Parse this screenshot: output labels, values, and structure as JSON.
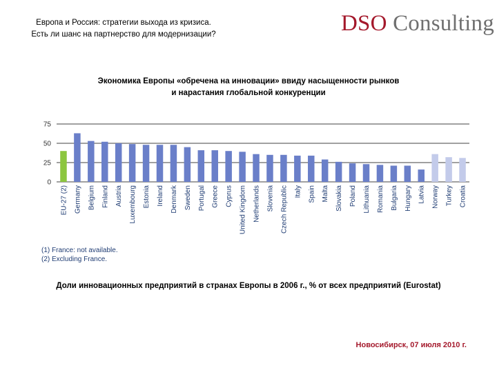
{
  "header": {
    "line1": "Европа и Россия: стратегии выхода из кризиса.",
    "line2": "Есть ли шанс на партнерство для модернизации?"
  },
  "logo": {
    "part1": "DSO",
    "part2": "Consulting"
  },
  "subtitle": {
    "line1": "Экономика Европы «обречена на инновации» ввиду насыщенности рынков",
    "line2": "и нарастания глобальной конкуренции"
  },
  "chart_data": {
    "type": "bar",
    "title": "",
    "xlabel": "",
    "ylabel": "",
    "ylim": [
      0,
      75
    ],
    "yticks": [
      0,
      25,
      50,
      75
    ],
    "grid": true,
    "categories": [
      "EU-27 (2)",
      "Germany",
      "Belgium",
      "Finland",
      "Austria",
      "Luxembourg",
      "Estonia",
      "Ireland",
      "Denmark",
      "Sweden",
      "Portugal",
      "Greece",
      "Cyprus",
      "United Kingdom",
      "Netherlands",
      "Slovenia",
      "Czech Republic",
      "Italy",
      "Spain",
      "Malta",
      "Slovakia",
      "Poland",
      "Lithuania",
      "Romania",
      "Bulgaria",
      "Hungary",
      "Latvia",
      "Norway",
      "Turkey",
      "Croatia"
    ],
    "values": [
      40,
      63,
      53,
      52,
      50,
      49,
      48,
      48,
      48,
      45,
      41,
      41,
      40,
      39,
      36,
      35,
      35,
      34,
      34,
      29,
      26,
      24,
      23,
      22,
      21,
      21,
      16,
      36,
      32,
      31
    ],
    "groups": [
      "eu",
      "member",
      "member",
      "member",
      "member",
      "member",
      "member",
      "member",
      "member",
      "member",
      "member",
      "member",
      "member",
      "member",
      "member",
      "member",
      "member",
      "member",
      "member",
      "member",
      "member",
      "member",
      "member",
      "member",
      "member",
      "member",
      "member",
      "nonmember",
      "nonmember",
      "nonmember"
    ],
    "colors": {
      "eu": "#8cc63f",
      "member": "#6a7fc9",
      "nonmember": "#c3cbea"
    },
    "notes": [
      "(1) France: not available.",
      "(2) Excluding France."
    ]
  },
  "caption": "Доли инновационных предприятий в странах Европы в 2006 г., % от всех предприятий (Eurostat)",
  "footer": "Новосибирск, 07 июля 2010 г."
}
